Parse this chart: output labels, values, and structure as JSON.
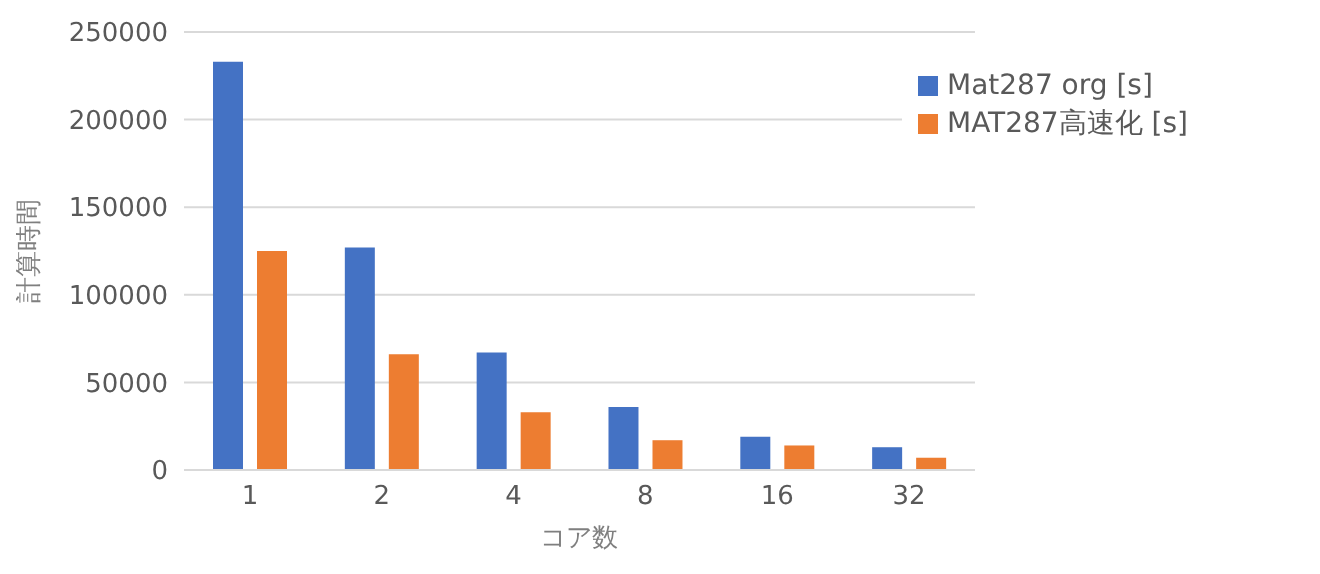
{
  "chart_data": {
    "type": "bar",
    "xlabel": "コア数",
    "ylabel": "計算時間",
    "categories": [
      "1",
      "2",
      "4",
      "8",
      "16",
      "32"
    ],
    "series": [
      {
        "name": "Mat287 org [s]",
        "color": "#4472c4",
        "values": [
          233000,
          127000,
          67000,
          36000,
          19000,
          13000
        ]
      },
      {
        "name": "MAT287高速化 [s]",
        "color": "#ed7d31",
        "values": [
          125000,
          66000,
          33000,
          17000,
          14000,
          7000
        ]
      }
    ],
    "ylim": [
      0,
      250000
    ],
    "yticks": [
      0,
      50000,
      100000,
      150000,
      200000,
      250000
    ],
    "grid": "y",
    "legend": "top right"
  }
}
